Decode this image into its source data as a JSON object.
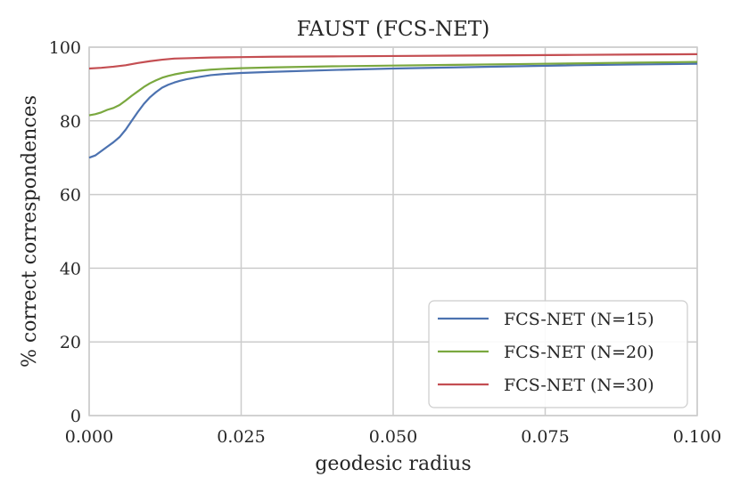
{
  "chart_data": {
    "type": "line",
    "title": "FAUST (FCS-NET)",
    "xlabel": "geodesic radius",
    "ylabel": "% correct correspondences",
    "xlim": [
      0.0,
      0.1
    ],
    "ylim": [
      0,
      100
    ],
    "x_ticks": [
      "0.000",
      "0.025",
      "0.050",
      "0.075",
      "0.100"
    ],
    "y_ticks": [
      "0",
      "20",
      "40",
      "60",
      "80",
      "100"
    ],
    "grid": true,
    "legend_position": "bottom-right",
    "series": [
      {
        "name": "FCS-NET (N=15)",
        "color": "#4c72b0",
        "x": [
          0.0,
          0.001,
          0.002,
          0.003,
          0.004,
          0.005,
          0.006,
          0.007,
          0.008,
          0.009,
          0.01,
          0.011,
          0.012,
          0.013,
          0.014,
          0.015,
          0.016,
          0.018,
          0.02,
          0.022,
          0.025,
          0.03,
          0.04,
          0.05,
          0.06,
          0.07,
          0.08,
          0.09,
          0.1
        ],
        "y": [
          70.0,
          70.6,
          71.8,
          73.0,
          74.2,
          75.6,
          77.6,
          80.0,
          82.4,
          84.6,
          86.4,
          87.8,
          89.0,
          89.8,
          90.4,
          90.9,
          91.3,
          91.9,
          92.4,
          92.7,
          93.0,
          93.3,
          93.8,
          94.2,
          94.5,
          94.8,
          95.1,
          95.3,
          95.5
        ]
      },
      {
        "name": "FCS-NET (N=20)",
        "color": "#7aa83f",
        "x": [
          0.0,
          0.001,
          0.002,
          0.003,
          0.004,
          0.005,
          0.006,
          0.007,
          0.008,
          0.009,
          0.01,
          0.011,
          0.012,
          0.013,
          0.014,
          0.015,
          0.016,
          0.018,
          0.02,
          0.022,
          0.025,
          0.03,
          0.04,
          0.05,
          0.06,
          0.07,
          0.08,
          0.09,
          0.1
        ],
        "y": [
          81.5,
          81.8,
          82.3,
          83.0,
          83.5,
          84.3,
          85.5,
          86.8,
          88.0,
          89.2,
          90.2,
          91.0,
          91.7,
          92.2,
          92.6,
          92.9,
          93.2,
          93.6,
          93.9,
          94.1,
          94.3,
          94.5,
          94.8,
          95.0,
          95.2,
          95.4,
          95.6,
          95.8,
          96.0
        ]
      },
      {
        "name": "FCS-NET (N=30)",
        "color": "#c44e52",
        "x": [
          0.0,
          0.002,
          0.004,
          0.006,
          0.008,
          0.01,
          0.012,
          0.014,
          0.016,
          0.02,
          0.025,
          0.03,
          0.04,
          0.05,
          0.06,
          0.07,
          0.08,
          0.09,
          0.1
        ],
        "y": [
          94.2,
          94.4,
          94.7,
          95.1,
          95.7,
          96.2,
          96.6,
          96.9,
          97.0,
          97.2,
          97.3,
          97.4,
          97.5,
          97.6,
          97.7,
          97.8,
          97.9,
          98.0,
          98.1
        ]
      }
    ]
  }
}
